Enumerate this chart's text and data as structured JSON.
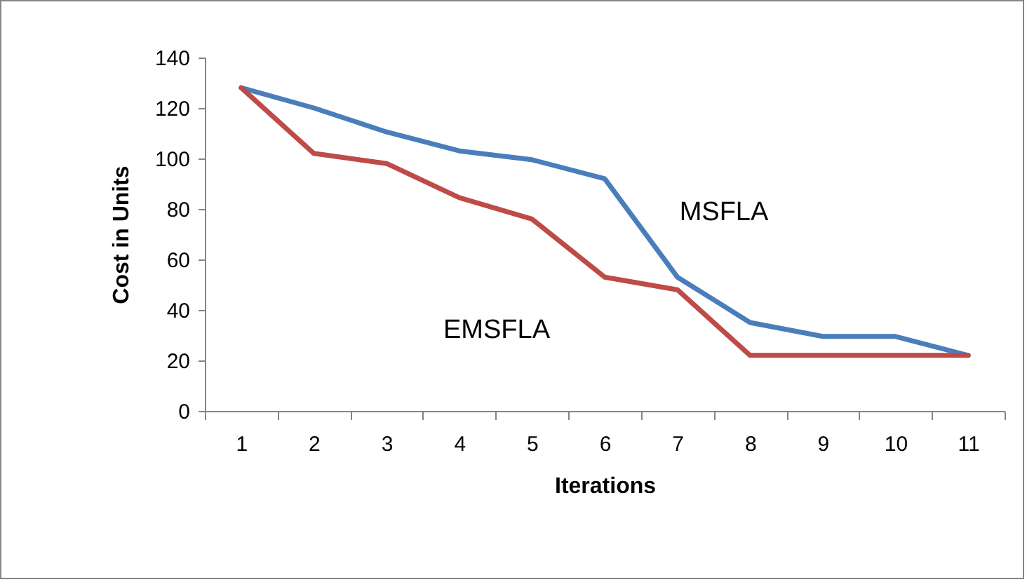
{
  "chart_data": {
    "type": "line",
    "xlabel": "Iterations",
    "ylabel": "Cost in Units",
    "categories": [
      "1",
      "2",
      "3",
      "4",
      "5",
      "6",
      "7",
      "8",
      "9",
      "10",
      "11"
    ],
    "ylim": [
      0,
      140
    ],
    "yticks": [
      0,
      20,
      40,
      60,
      80,
      100,
      120,
      140
    ],
    "grid": false,
    "marker": "none",
    "line_style": "solid",
    "series": [
      {
        "name": "MSFLA",
        "color": "#4a7ebb",
        "values": [
          128,
          120,
          110.5,
          103,
          99.5,
          92,
          53,
          35,
          29.5,
          29.5,
          22
        ]
      },
      {
        "name": "EMSFLA",
        "color": "#be4b48",
        "values": [
          128,
          102,
          98,
          84.5,
          76,
          53,
          48,
          22,
          22,
          22,
          22
        ]
      }
    ]
  }
}
